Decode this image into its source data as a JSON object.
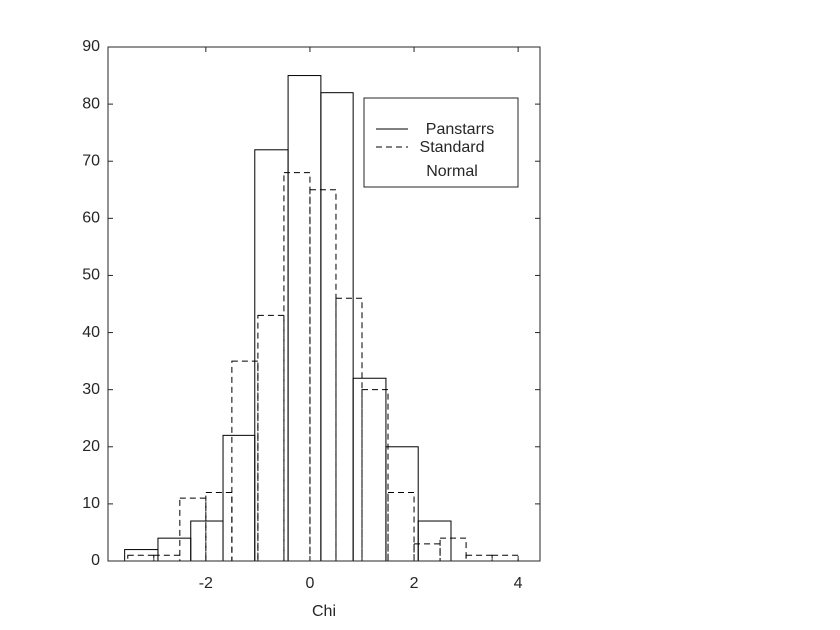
{
  "chart_data": {
    "type": "histogram",
    "xlabel": "Chi",
    "xlim": [
      -3.88,
      4.42
    ],
    "ylim": [
      0,
      90
    ],
    "xticks": [
      -2,
      0,
      2,
      4
    ],
    "yticks": [
      0,
      10,
      20,
      30,
      40,
      50,
      60,
      70,
      80,
      90
    ],
    "legend": "upper right",
    "series": [
      {
        "name": "Panstarrs",
        "color": "#000000",
        "linestyle": "solid",
        "bins": [
          -3.56,
          -2.92,
          -2.29,
          -1.67,
          -1.06,
          -0.42,
          0.21,
          0.83,
          1.46,
          2.08,
          2.71
        ],
        "values": [
          2,
          4,
          7,
          22,
          72,
          85,
          82,
          32,
          20,
          7
        ]
      },
      {
        "name": "Standard Normal",
        "color": "#000000",
        "linestyle": "dashed",
        "bins": [
          -3.5,
          -3.0,
          -2.5,
          -2.0,
          -1.5,
          -1.0,
          -0.5,
          0.0,
          0.5,
          1.0,
          1.5,
          2.0,
          2.5,
          3.0,
          3.5,
          4.0
        ],
        "values": [
          1,
          1,
          11,
          12,
          35,
          43,
          68,
          65,
          46,
          30,
          12,
          3,
          4,
          1,
          1
        ]
      }
    ]
  }
}
